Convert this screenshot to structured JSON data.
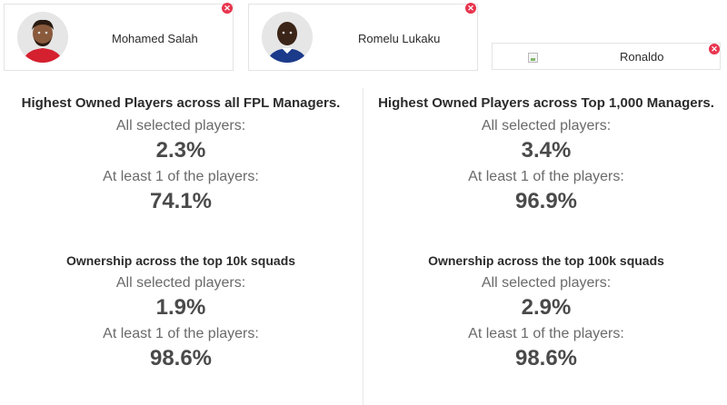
{
  "players": [
    {
      "name": "Mohamed Salah",
      "shirt_color": "#d5202f",
      "remove_icon": "close-icon"
    },
    {
      "name": "Romelu Lukaku",
      "shirt_color": "#1c3a8a",
      "remove_icon": "close-icon"
    },
    {
      "name": "Ronaldo",
      "image": "broken-image-icon",
      "remove_icon": "close-icon"
    }
  ],
  "stats": {
    "all_managers": {
      "title": "Highest Owned Players across all FPL Managers.",
      "all_label": "All selected players:",
      "all_value": "2.3%",
      "one_label": "At least 1 of the players:",
      "one_value": "74.1%"
    },
    "top_1000": {
      "title": "Highest Owned Players across Top 1,000 Managers.",
      "all_label": "All selected players:",
      "all_value": "3.4%",
      "one_label": "At least 1 of the players:",
      "one_value": "96.9%"
    },
    "top_10k": {
      "title": "Ownership across the top 10k squads",
      "all_label": "All selected players:",
      "all_value": "1.9%",
      "one_label": "At least 1 of the players:",
      "one_value": "98.6%"
    },
    "top_100k": {
      "title": "Ownership across the top 100k squads",
      "all_label": "All selected players:",
      "all_value": "2.9%",
      "one_label": "At least 1 of the players:",
      "one_value": "98.6%"
    }
  },
  "colors": {
    "remove_button": "#e8344e",
    "divider": "#e9e9e9"
  }
}
